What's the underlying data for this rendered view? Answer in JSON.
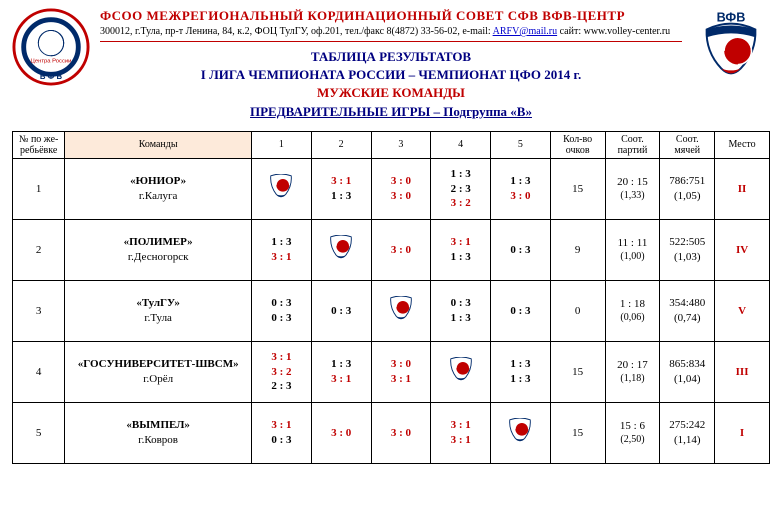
{
  "header": {
    "org_title": "ФСОО  МЕЖРЕГИОНАЛЬНЫЙ  КОРДИНАЦИОННЫЙ  СОВЕТ СФВ  ВФВ-ЦЕНТР",
    "org_sub_prefix": "300012, г.Тула, пр-т Ленина, 84, к.2, ФОЦ ТулГУ, оф.201, тел./факс 8(4872) 33-56-02, e-mail: ",
    "org_email": "ARFV@mail.ru",
    "org_sub_mid": "  сайт: ",
    "org_site": "www.volley-center.ru"
  },
  "titles": {
    "t1": "ТАБЛИЦА  РЕЗУЛЬТАТОВ",
    "t2": "I  ЛИГА  ЧЕМПИОНАТА   РОССИИ – ЧЕМПИОНАТ  ЦФО  2014 г.",
    "t3": "МУЖСКИЕ  КОМАНДЫ",
    "t4": "ПРЕДВАРИТЕЛЬНЫЕ   ИГРЫ – Подгруппа  «В»"
  },
  "columns": {
    "num": "№ по же-ребьёвке",
    "team": "Команды",
    "c1": "1",
    "c2": "2",
    "c3": "3",
    "c4": "4",
    "c5": "5",
    "pts": "Кол-во очков",
    "set_ratio": "Соот. партий",
    "ball_ratio": "Соот. мячей",
    "place": "Место"
  },
  "rows": [
    {
      "num": "1",
      "team_name": "«ЮНИОР»",
      "team_city": "г.Калуга",
      "cells": [
        {
          "diag": true
        },
        {
          "lines": [
            {
              "t": "3 : 1",
              "w": true
            },
            {
              "t": "1 : 3",
              "w": false
            }
          ]
        },
        {
          "lines": [
            {
              "t": "3 : 0",
              "w": true
            },
            {
              "t": "3 : 0",
              "w": true
            }
          ]
        },
        {
          "lines": [
            {
              "t": "1 : 3",
              "w": false
            },
            {
              "t": "2 : 3",
              "w": false
            },
            {
              "t": "3 : 2",
              "w": true
            }
          ]
        },
        {
          "lines": [
            {
              "t": "1 : 3",
              "w": false
            },
            {
              "t": "3 : 0",
              "w": true
            }
          ]
        }
      ],
      "pts": "15",
      "set_ratio": "20 : 15",
      "set_ratio_sub": "(1,33)",
      "ball_ratio": "786:751",
      "ball_ratio_sub": "(1,05)",
      "place": "II"
    },
    {
      "num": "2",
      "team_name": "«ПОЛИМЕР»",
      "team_city": "г.Десногорск",
      "cells": [
        {
          "lines": [
            {
              "t": "1 : 3",
              "w": false
            },
            {
              "t": "3 : 1",
              "w": true
            }
          ]
        },
        {
          "diag": true
        },
        {
          "lines": [
            {
              "t": "3 : 0",
              "w": true
            }
          ]
        },
        {
          "lines": [
            {
              "t": "3 : 1",
              "w": true
            },
            {
              "t": "1 : 3",
              "w": false
            }
          ]
        },
        {
          "lines": [
            {
              "t": "0 : 3",
              "w": false
            }
          ]
        }
      ],
      "pts": "9",
      "set_ratio": "11 : 11",
      "set_ratio_sub": "(1,00)",
      "ball_ratio": "522:505",
      "ball_ratio_sub": "(1,03)",
      "place": "IV"
    },
    {
      "num": "3",
      "team_name": "«ТулГУ»",
      "team_city": "г.Тула",
      "cells": [
        {
          "lines": [
            {
              "t": "0 : 3",
              "w": false
            },
            {
              "t": "0 : 3",
              "w": false
            }
          ]
        },
        {
          "lines": [
            {
              "t": "0 : 3",
              "w": false
            }
          ]
        },
        {
          "diag": true
        },
        {
          "lines": [
            {
              "t": "0 : 3",
              "w": false
            },
            {
              "t": "1 : 3",
              "w": false
            }
          ]
        },
        {
          "lines": [
            {
              "t": "0 : 3",
              "w": false
            }
          ]
        }
      ],
      "pts": "0",
      "set_ratio": "1 : 18",
      "set_ratio_sub": "(0,06)",
      "ball_ratio": "354:480",
      "ball_ratio_sub": "(0,74)",
      "place": "V"
    },
    {
      "num": "4",
      "team_name": "«ГОСУНИВЕРСИТЕТ-ШВСМ»",
      "team_city": "г.Орёл",
      "cells": [
        {
          "lines": [
            {
              "t": "3 : 1",
              "w": true
            },
            {
              "t": "3 : 2",
              "w": true
            },
            {
              "t": "2 : 3",
              "w": false
            }
          ]
        },
        {
          "lines": [
            {
              "t": "1 : 3",
              "w": false
            },
            {
              "t": "3 : 1",
              "w": true
            }
          ]
        },
        {
          "lines": [
            {
              "t": "3 : 0",
              "w": true
            },
            {
              "t": "3 : 1",
              "w": true
            }
          ]
        },
        {
          "diag": true
        },
        {
          "lines": [
            {
              "t": "1 : 3",
              "w": false
            },
            {
              "t": "1 : 3",
              "w": false
            }
          ]
        }
      ],
      "pts": "15",
      "set_ratio": "20 : 17",
      "set_ratio_sub": "(1,18)",
      "ball_ratio": "865:834",
      "ball_ratio_sub": "(1,04)",
      "place": "III"
    },
    {
      "num": "5",
      "team_name": "«ВЫМПЕЛ»",
      "team_city": "г.Ковров",
      "cells": [
        {
          "lines": [
            {
              "t": "3 : 1",
              "w": true
            },
            {
              "t": "0 : 3",
              "w": false
            }
          ]
        },
        {
          "lines": [
            {
              "t": "3 : 0",
              "w": true
            }
          ]
        },
        {
          "lines": [
            {
              "t": "3 : 0",
              "w": true
            }
          ]
        },
        {
          "lines": [
            {
              "t": "3 : 1",
              "w": true
            },
            {
              "t": "3 : 1",
              "w": true
            }
          ]
        },
        {
          "diag": true
        }
      ],
      "pts": "15",
      "set_ratio": "15 : 6",
      "set_ratio_sub": "(2,50)",
      "ball_ratio": "275:242",
      "ball_ratio_sub": "(1,14)",
      "place": "I"
    }
  ],
  "colors": {
    "red": "#c00000",
    "navy": "#000080",
    "header_bg": "#fdeada"
  }
}
